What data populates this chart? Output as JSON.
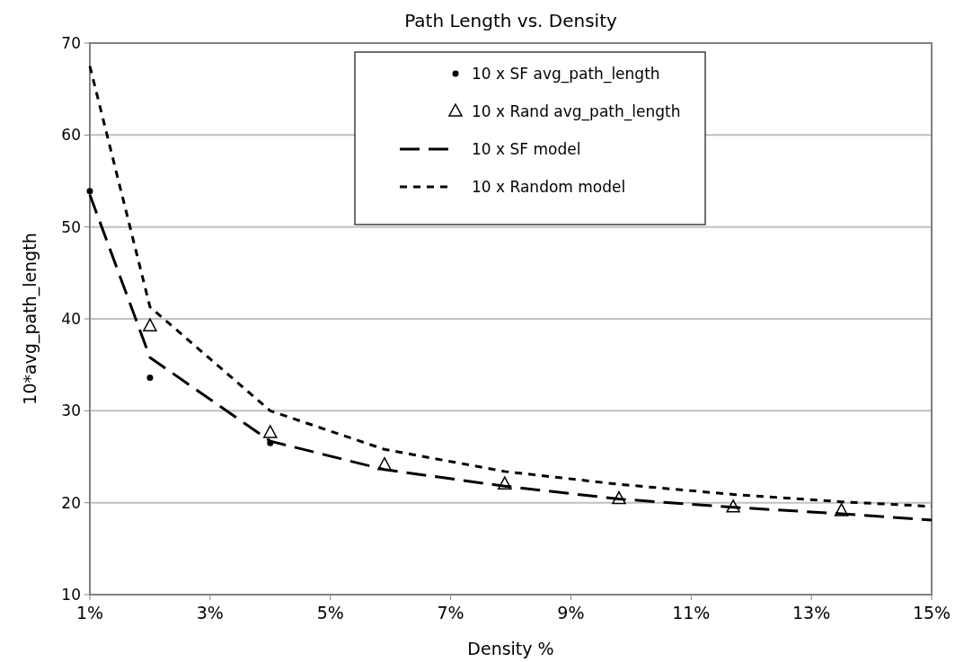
{
  "chart_data": {
    "type": "line",
    "title": "Path Length vs. Density",
    "xlabel": "Density %",
    "ylabel": "10*avg_path_length",
    "xlim": [
      1,
      15
    ],
    "xticks": [
      {
        "value": 1,
        "label": "1%"
      },
      {
        "value": 3,
        "label": "3%"
      },
      {
        "value": 5,
        "label": "5%"
      },
      {
        "value": 7,
        "label": "7%"
      },
      {
        "value": 9,
        "label": "9%"
      },
      {
        "value": 11,
        "label": "11%"
      },
      {
        "value": 13,
        "label": "13%"
      },
      {
        "value": 15,
        "label": "15%"
      }
    ],
    "ylim": [
      10,
      70
    ],
    "yticks": [
      10,
      20,
      30,
      40,
      50,
      60,
      70
    ],
    "grid": "y",
    "legend": "top right",
    "series": [
      {
        "name": "10 x SF avg_path_length",
        "type": "scatter",
        "marker": "circle",
        "color": "#000000",
        "x": [
          1,
          2,
          4
        ],
        "values": [
          53.9,
          33.6,
          26.5
        ]
      },
      {
        "name": "10 x Rand avg_path_length",
        "type": "scatter",
        "marker": "triangle",
        "color": "#000000",
        "x": [
          2,
          4,
          5.9,
          7.9,
          9.8,
          11.7,
          13.5
        ],
        "values": [
          39.2,
          27.6,
          24.1,
          22.0,
          20.4,
          19.5,
          19.1
        ]
      },
      {
        "name": "10 x SF model",
        "line_style": "dashed",
        "marker": "none",
        "color": "#000000",
        "x": [
          1,
          2,
          4,
          5.9,
          7.9,
          9.8,
          11.7,
          13.5,
          15
        ],
        "values": [
          53.5,
          35.8,
          26.7,
          23.6,
          21.8,
          20.4,
          19.5,
          18.8,
          18.1
        ]
      },
      {
        "name": "10 x Random model",
        "line_style": "dotted",
        "marker": "none",
        "color": "#000000",
        "x": [
          1,
          2,
          4,
          5.9,
          7.9,
          9.8,
          11.7,
          13.5,
          15
        ],
        "values": [
          67.5,
          41.3,
          30.0,
          25.8,
          23.4,
          22.0,
          20.9,
          20.1,
          19.6
        ]
      }
    ]
  }
}
